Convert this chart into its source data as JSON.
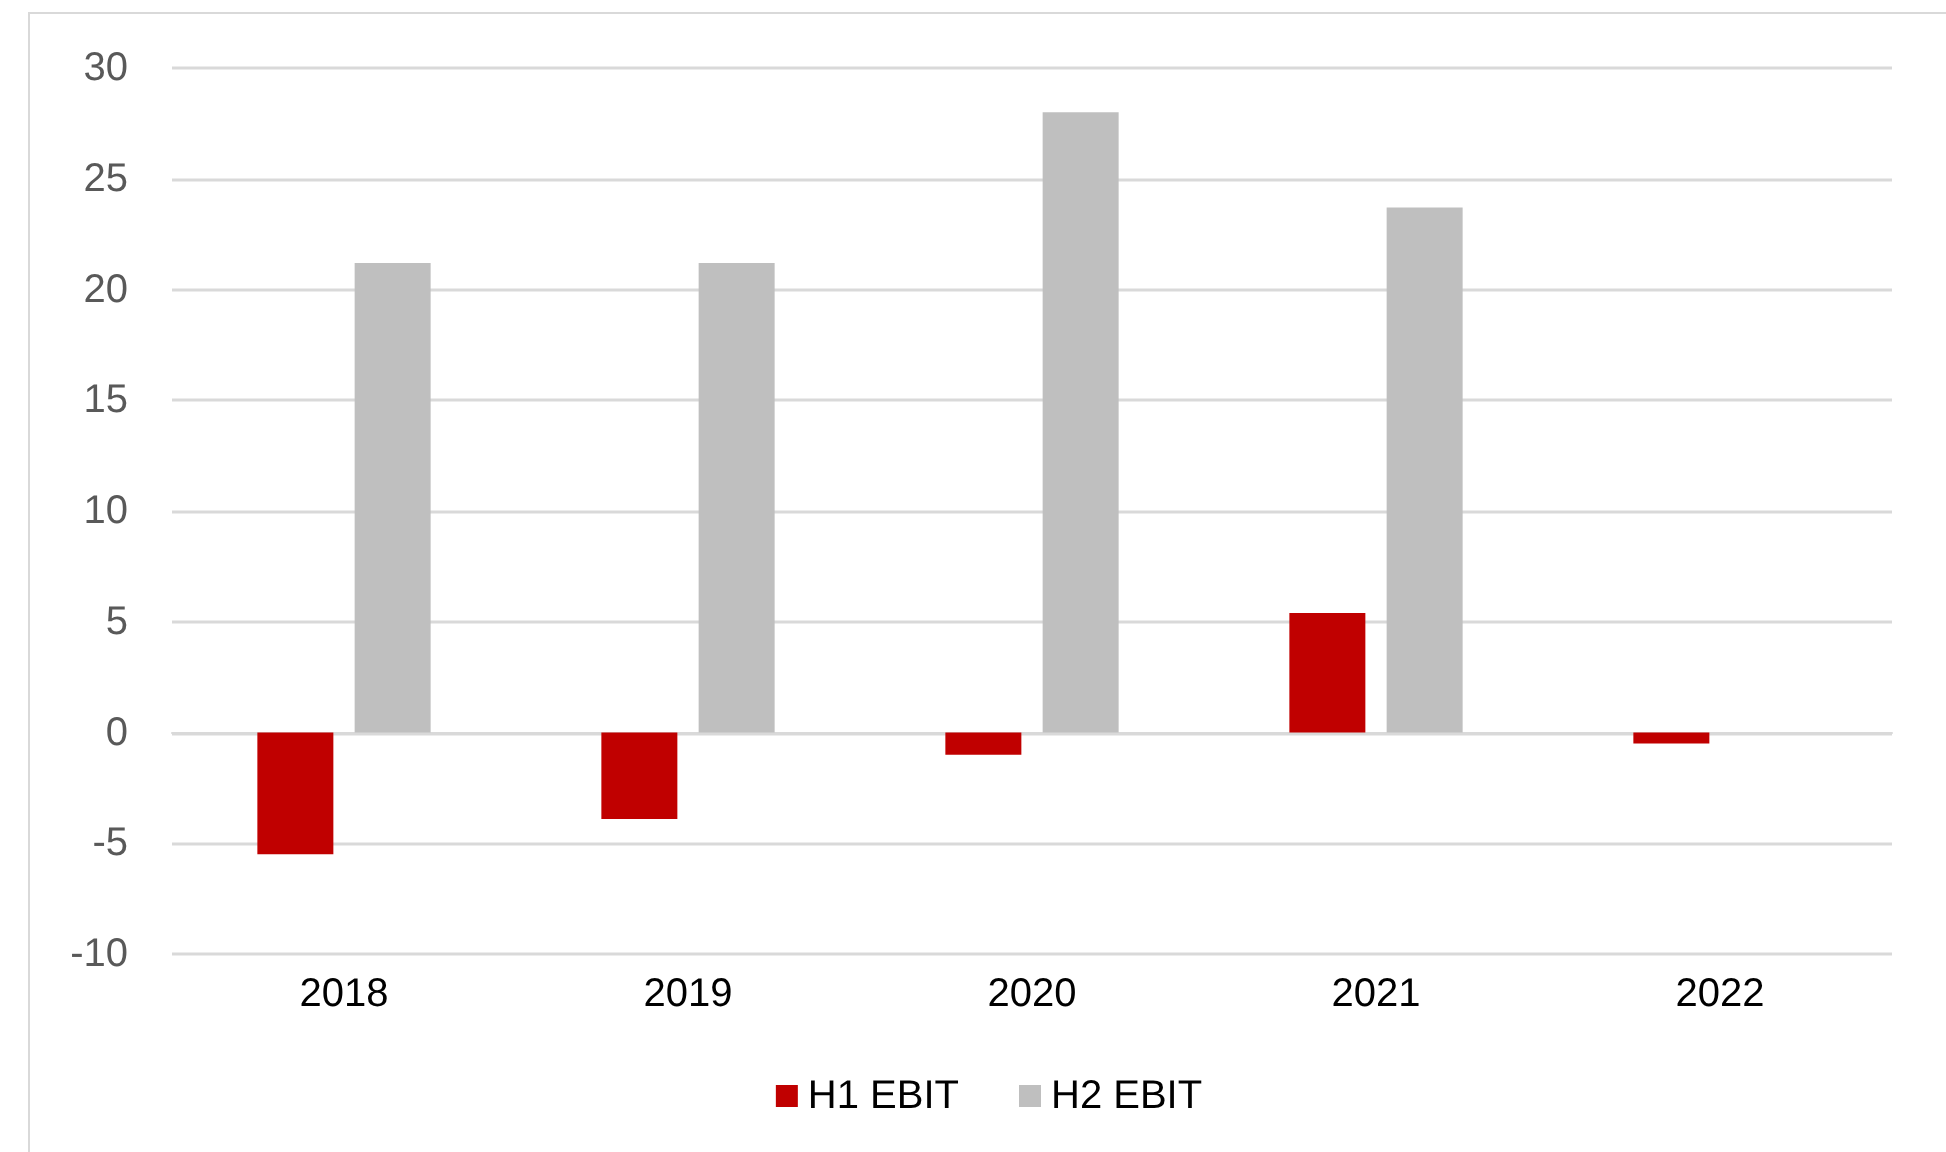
{
  "chart_data": {
    "type": "bar",
    "categories": [
      "2018",
      "2019",
      "2020",
      "2021",
      "2022"
    ],
    "series": [
      {
        "name": "H1 EBIT",
        "color": "#c00000",
        "values": [
          -5.5,
          -3.9,
          -1.0,
          5.4,
          -0.5
        ]
      },
      {
        "name": "H2 EBIT",
        "color": "#bfbfbf",
        "values": [
          21.2,
          21.2,
          28.0,
          23.7,
          null
        ]
      }
    ],
    "ylim": [
      -10,
      30
    ],
    "yticks": [
      -10,
      -5,
      0,
      5,
      10,
      15,
      20,
      25,
      30
    ],
    "grid": "y",
    "legend": "bottom"
  }
}
